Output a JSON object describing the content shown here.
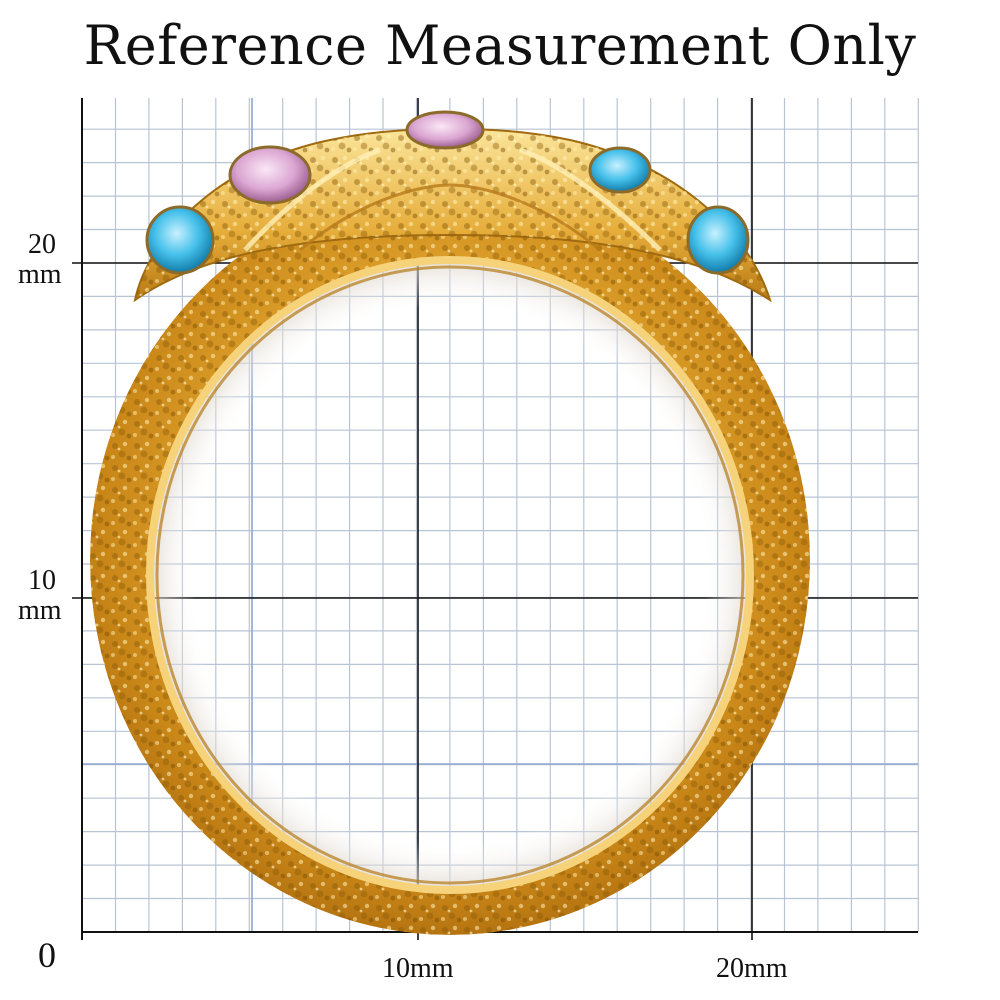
{
  "title": "Reference Measurement Only",
  "y_axis_labels": {
    "y20_value": "20",
    "y20_unit": "mm",
    "y10_value": "10",
    "y10_unit": "mm"
  },
  "origin_label": "0",
  "x_axis_labels": {
    "x10": "10mm",
    "x20": "20mm"
  },
  "colors": {
    "grid_minor": "#b8c4d6",
    "grid_major": "#111111",
    "gold_base": "#e0a22a",
    "gold_light": "#f7dc7c",
    "gold_dark": "#9a6410",
    "crystal_pink": "#e3b4dc",
    "crystal_blue": "#4cc3e8"
  },
  "object": "textured-gold-ring-with-crystals"
}
